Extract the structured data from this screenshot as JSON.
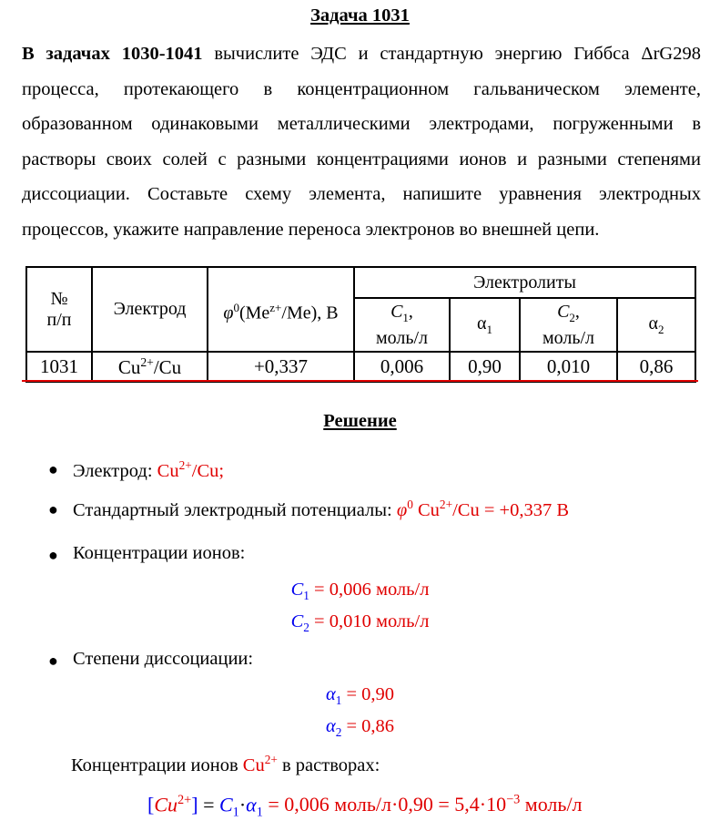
{
  "title": "Задача 1031",
  "task": {
    "bold": "В задачах 1030-1041",
    "text": " вычислите ЭДС и стандартную энергию Гиббса ΔrG298 процесса, протекающего в концентрационном гальваническом элементе, образованном одинаковыми металлическими электродами, погруженными в растворы своих солей с разными концентрациями ионов и разными степенями диссоциации. Составьте схему элемента, напишите уравнения электродных процессов, укажите направление переноса электронов во внешней цепи."
  },
  "table": {
    "h_num": "№ п/п",
    "h_electrode": "Электрод",
    "h_phi": "φ0(Mez+/Me), В",
    "h_electrolytes": "Электролиты",
    "h_c1": "C1, моль/л",
    "h_a1": "α1",
    "h_c2": "C2, моль/л",
    "h_a2": "α2",
    "row": {
      "num": "1031",
      "electrode": "Cu2+/Cu",
      "phi": "+0,337",
      "c1": "0,006",
      "a1": "0,90",
      "c2": "0,010",
      "a2": "0,86"
    }
  },
  "solution_title": "Решение",
  "items": [
    {
      "label": "Электрод: ",
      "value": "Cu2+/Cu;"
    },
    {
      "label": "Стандартный электродный потенциалы: ",
      "value": "φ0 Cu2+/Cu = +0,337 В"
    },
    {
      "label": "Концентрации ионов:"
    },
    {
      "label": "Степени диссоциации:"
    }
  ],
  "formulas": {
    "c1": "C1 = 0,006 моль/л",
    "c2": "C2 = 0,010 моль/л",
    "a1": "α1 = 0,90",
    "a2": "α2 = 0,86",
    "last": "[Cu2+] = C1·α1 = 0,006 моль/л·0,90 = 5,4·10−3 моль/л"
  },
  "conc_text": {
    "before": "Концентрации ионов ",
    "ion": "Cu2+",
    "after": " в растворах:"
  },
  "colors": {
    "red": "#e00000",
    "blue": "#0000ee"
  }
}
